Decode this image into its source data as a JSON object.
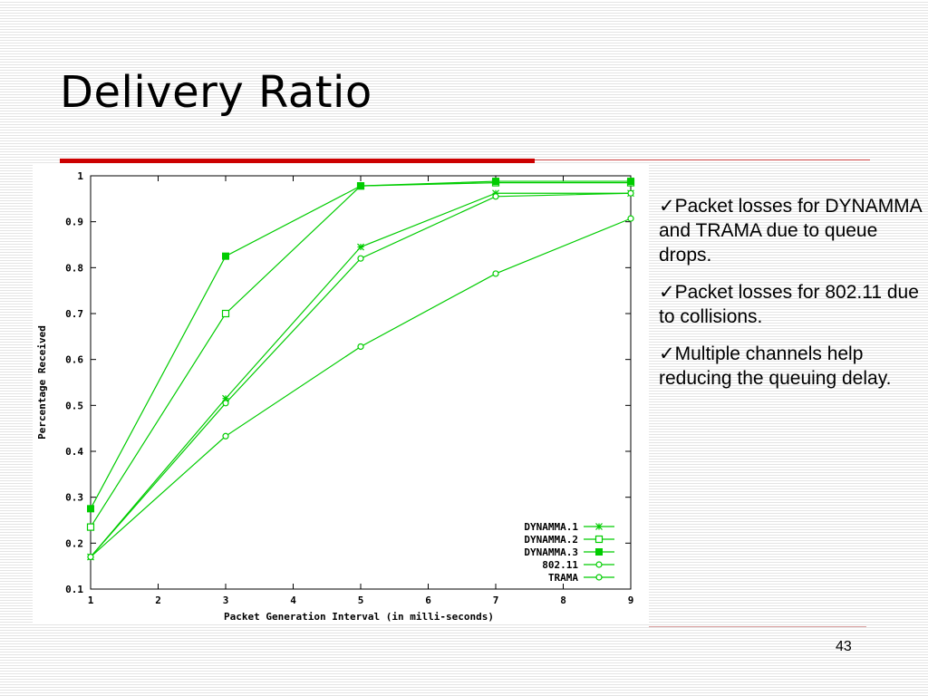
{
  "slide": {
    "title": "Delivery Ratio",
    "page_number": "43",
    "bullets": [
      {
        "check": "✓",
        "text": "Packet losses for DYNAMMA and TRAMA due to queue drops."
      },
      {
        "check": "✓",
        "text": "Packet losses for 802.11 due to collisions."
      },
      {
        "check": "✓",
        "text": "Multiple channels help reducing the queuing delay."
      }
    ]
  },
  "colors": {
    "series_line": "#00cc00",
    "accent_rule": "#cc0000"
  },
  "chart_data": {
    "type": "line",
    "xlabel": "Packet Generation Interval (in milli-seconds)",
    "ylabel": "Percentage Received",
    "xlim": [
      1,
      9
    ],
    "ylim": [
      0.1,
      1
    ],
    "xticks": [
      "1",
      "2",
      "3",
      "4",
      "5",
      "6",
      "7",
      "8",
      "9"
    ],
    "yticks": [
      "0.1",
      "0.2",
      "0.3",
      "0.4",
      "0.5",
      "0.6",
      "0.7",
      "0.8",
      "0.9",
      "1"
    ],
    "x": [
      1,
      3,
      5,
      7,
      9
    ],
    "grid": false,
    "legend_position": "bottom-right",
    "series": [
      {
        "name": "DYNAMMA.1",
        "marker": "star",
        "values": [
          0.17,
          0.515,
          0.845,
          0.962,
          0.962
        ]
      },
      {
        "name": "DYNAMMA.2",
        "marker": "open-square",
        "values": [
          0.235,
          0.7,
          0.978,
          0.985,
          0.985
        ]
      },
      {
        "name": "DYNAMMA.3",
        "marker": "filled-square",
        "values": [
          0.275,
          0.825,
          0.978,
          0.988,
          0.988
        ]
      },
      {
        "name": "802.11",
        "marker": "open-circle",
        "values": [
          0.17,
          0.505,
          0.82,
          0.955,
          0.962
        ]
      },
      {
        "name": "TRAMA",
        "marker": "open-circle",
        "values": [
          0.17,
          0.433,
          0.628,
          0.787,
          0.907
        ]
      }
    ]
  }
}
